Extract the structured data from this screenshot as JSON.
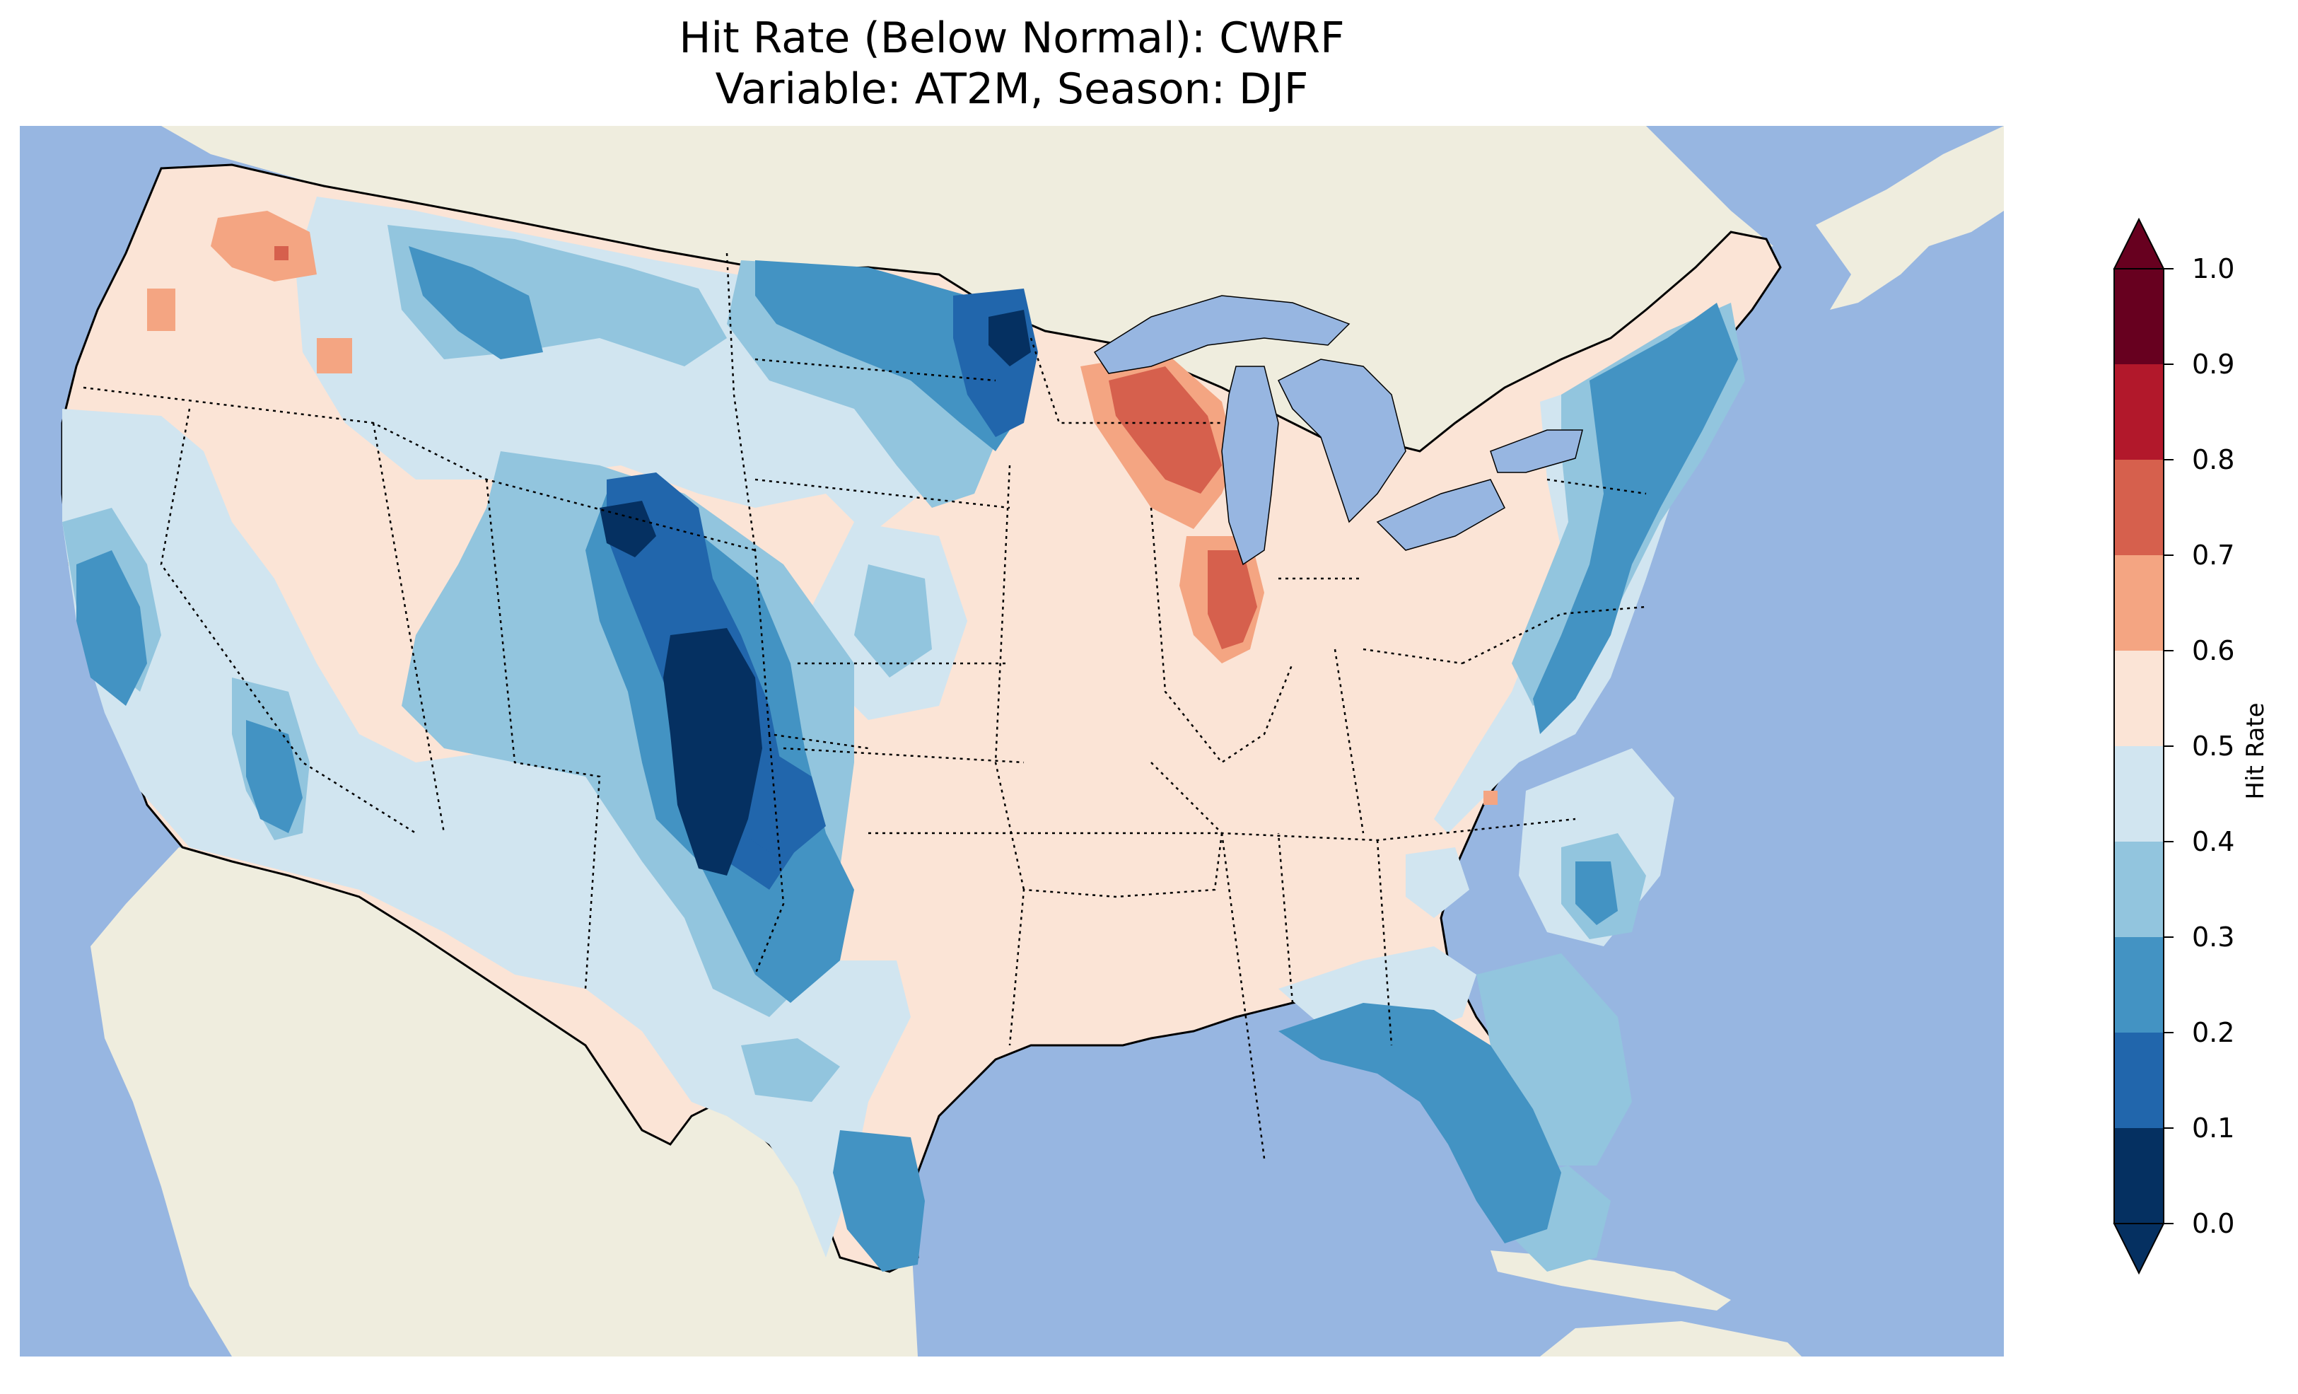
{
  "title": {
    "line1": "Hit Rate (Below Normal): CWRF",
    "line2": "Variable: AT2M, Season: DJF"
  },
  "colorbar": {
    "label": "Hit Rate",
    "ticks": [
      "0.0",
      "0.1",
      "0.2",
      "0.3",
      "0.4",
      "0.5",
      "0.6",
      "0.7",
      "0.8",
      "0.9",
      "1.0"
    ],
    "colors": [
      "#053061",
      "#2166ac",
      "#4393c3",
      "#92c5de",
      "#d1e5f0",
      "#fbe4d6",
      "#f4a582",
      "#d6604d",
      "#b2182b",
      "#67001f"
    ],
    "extend": "both"
  },
  "map": {
    "ocean_color": "#97b6e1",
    "land_color": "#efedde",
    "region_values": [
      {
        "region": "pacific-northwest-coast",
        "value": 0.55
      },
      {
        "region": "oregon-interior",
        "value": 0.62
      },
      {
        "region": "california-coast",
        "value": 0.35
      },
      {
        "region": "nevada",
        "value": 0.45
      },
      {
        "region": "northern-rockies",
        "value": 0.3
      },
      {
        "region": "north-dakota-minnesota",
        "value": 0.2
      },
      {
        "region": "wyoming-colorado",
        "value": 0.08
      },
      {
        "region": "new-mexico",
        "value": 0.22
      },
      {
        "region": "plains",
        "value": 0.55
      },
      {
        "region": "wisconsin",
        "value": 0.72
      },
      {
        "region": "illinois",
        "value": 0.72
      },
      {
        "region": "texas-south",
        "value": 0.25
      },
      {
        "region": "florida",
        "value": 0.25
      },
      {
        "region": "northeast",
        "value": 0.25
      },
      {
        "region": "southeast",
        "value": 0.55
      }
    ]
  }
}
